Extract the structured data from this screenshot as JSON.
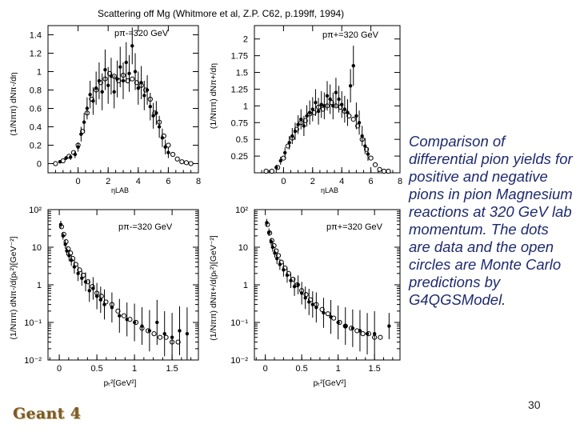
{
  "figure_title": "Scattering off Mg (Whitmore et al, Z.P. C62, p.199ff, 1994)",
  "caption": "Comparison of differential pion yields for positive and negative pions in pion Magnesium reactions at 320 GeV lab momentum. The dots are data and the open circles are Monte Carlo predictions by G4QGSModel.",
  "slide_number": "30",
  "logo_text": "Geant 4",
  "colors": {
    "ink": "#000000",
    "caption": "#1e2a6e",
    "logo": "#7a5a2a"
  },
  "chart_data": [
    {
      "id": "eta-pi-minus",
      "type": "scatter",
      "legend": "pπ-=320 GeV",
      "ylabel": "(1/Nππ) dNπ-/dη",
      "xlabel": "ηLAB",
      "xlim": [
        -2,
        8
      ],
      "ylim": [
        -0.1,
        1.5
      ],
      "yscale": "linear",
      "xticks": [
        0,
        2,
        4,
        6,
        8
      ],
      "xtick_labels": [
        "0",
        "2",
        "4",
        "6",
        "8"
      ],
      "yticks": [
        0,
        0.2,
        0.4,
        0.6,
        0.8,
        1,
        1.2,
        1.4
      ],
      "ytick_labels": [
        "0",
        "0.2",
        "0.4",
        "0.6",
        "0.8",
        "1",
        "1.2",
        "1.4"
      ],
      "data": [
        [
          -1.2,
          0.02
        ],
        [
          -0.8,
          0.06
        ],
        [
          -0.5,
          0.07
        ],
        [
          -0.2,
          0.1
        ],
        [
          0.0,
          0.18
        ],
        [
          0.2,
          0.32
        ],
        [
          0.4,
          0.45
        ],
        [
          0.6,
          0.6
        ],
        [
          0.8,
          0.75
        ],
        [
          1.0,
          0.68
        ],
        [
          1.2,
          0.82
        ],
        [
          1.4,
          0.9
        ],
        [
          1.6,
          0.78
        ],
        [
          1.8,
          1.02
        ],
        [
          2.0,
          0.85
        ],
        [
          2.2,
          0.95
        ],
        [
          2.4,
          0.78
        ],
        [
          2.6,
          0.92
        ],
        [
          2.8,
          1.05
        ],
        [
          3.0,
          0.9
        ],
        [
          3.2,
          1.1
        ],
        [
          3.4,
          0.98
        ],
        [
          3.6,
          1.28
        ],
        [
          3.8,
          1.0
        ],
        [
          4.0,
          0.82
        ],
        [
          4.2,
          0.88
        ],
        [
          4.4,
          0.74
        ],
        [
          4.6,
          0.8
        ],
        [
          4.8,
          0.62
        ],
        [
          5.0,
          0.52
        ],
        [
          5.2,
          0.55
        ],
        [
          5.4,
          0.4
        ],
        [
          5.6,
          0.28
        ],
        [
          5.8,
          0.18
        ],
        [
          6.0,
          0.12
        ]
      ],
      "data_err": [
        0.01,
        0.02,
        0.03,
        0.04,
        0.05,
        0.08,
        0.1,
        0.12,
        0.15,
        0.15,
        0.18,
        0.2,
        0.2,
        0.22,
        0.2,
        0.2,
        0.18,
        0.2,
        0.22,
        0.2,
        0.22,
        0.2,
        0.2,
        0.2,
        0.18,
        0.18,
        0.16,
        0.16,
        0.15,
        0.14,
        0.13,
        0.12,
        0.1,
        0.08,
        0.06
      ],
      "mc": [
        [
          -1.5,
          0.0
        ],
        [
          -1.0,
          0.03
        ],
        [
          -0.6,
          0.08
        ],
        [
          -0.3,
          0.12
        ],
        [
          0.0,
          0.2
        ],
        [
          0.3,
          0.35
        ],
        [
          0.6,
          0.55
        ],
        [
          0.9,
          0.7
        ],
        [
          1.2,
          0.8
        ],
        [
          1.5,
          0.88
        ],
        [
          1.8,
          0.92
        ],
        [
          2.1,
          0.98
        ],
        [
          2.4,
          0.95
        ],
        [
          2.7,
          0.9
        ],
        [
          3.0,
          0.96
        ],
        [
          3.3,
          0.9
        ],
        [
          3.6,
          0.92
        ],
        [
          3.9,
          0.88
        ],
        [
          4.2,
          0.85
        ],
        [
          4.5,
          0.8
        ],
        [
          4.8,
          0.7
        ],
        [
          5.1,
          0.55
        ],
        [
          5.4,
          0.45
        ],
        [
          5.7,
          0.3
        ],
        [
          6.0,
          0.2
        ],
        [
          6.3,
          0.1
        ],
        [
          6.6,
          0.05
        ],
        [
          6.9,
          0.02
        ],
        [
          7.2,
          0.01
        ],
        [
          7.5,
          0.0
        ]
      ]
    },
    {
      "id": "eta-pi-plus",
      "type": "scatter",
      "legend": "pπ+=320 GeV",
      "ylabel": "(1/Nππ) dNπ+/dη",
      "xlabel": "ηLAB",
      "xlim": [
        -2,
        8
      ],
      "ylim": [
        0,
        2.2
      ],
      "yscale": "linear",
      "xticks": [
        0,
        2,
        4,
        6,
        8
      ],
      "xtick_labels": [
        "0",
        "2",
        "4",
        "6",
        "8"
      ],
      "yticks": [
        0.25,
        0.5,
        0.75,
        1,
        1.25,
        1.5,
        1.75,
        2
      ],
      "ytick_labels": [
        "0.25",
        "0.5",
        "0.75",
        "1",
        "1.25",
        "1.5",
        "1.75",
        "2"
      ],
      "data": [
        [
          -0.5,
          0.08
        ],
        [
          -0.2,
          0.18
        ],
        [
          0.1,
          0.3
        ],
        [
          0.4,
          0.45
        ],
        [
          0.6,
          0.55
        ],
        [
          0.8,
          0.62
        ],
        [
          1.0,
          0.72
        ],
        [
          1.2,
          0.8
        ],
        [
          1.4,
          0.7
        ],
        [
          1.6,
          0.85
        ],
        [
          1.8,
          0.9
        ],
        [
          2.0,
          0.95
        ],
        [
          2.2,
          1.05
        ],
        [
          2.4,
          0.92
        ],
        [
          2.6,
          1.02
        ],
        [
          2.8,
          1.0
        ],
        [
          3.0,
          1.15
        ],
        [
          3.2,
          1.1
        ],
        [
          3.4,
          1.0
        ],
        [
          3.6,
          1.2
        ],
        [
          3.8,
          1.1
        ],
        [
          4.0,
          1.02
        ],
        [
          4.2,
          0.95
        ],
        [
          4.4,
          0.9
        ],
        [
          4.6,
          1.3
        ],
        [
          4.8,
          1.6
        ],
        [
          5.0,
          0.85
        ],
        [
          5.2,
          0.75
        ],
        [
          5.4,
          0.55
        ],
        [
          5.6,
          0.4
        ],
        [
          5.8,
          0.28
        ]
      ],
      "data_err": [
        0.04,
        0.06,
        0.08,
        0.1,
        0.12,
        0.13,
        0.14,
        0.15,
        0.15,
        0.16,
        0.18,
        0.18,
        0.2,
        0.2,
        0.2,
        0.2,
        0.22,
        0.22,
        0.2,
        0.22,
        0.2,
        0.2,
        0.2,
        0.2,
        0.25,
        0.3,
        0.2,
        0.18,
        0.15,
        0.12,
        0.1
      ],
      "mc": [
        [
          -1.2,
          0.0
        ],
        [
          -0.8,
          0.02
        ],
        [
          -0.4,
          0.08
        ],
        [
          0.0,
          0.22
        ],
        [
          0.3,
          0.4
        ],
        [
          0.6,
          0.52
        ],
        [
          0.9,
          0.65
        ],
        [
          1.2,
          0.75
        ],
        [
          1.5,
          0.78
        ],
        [
          1.8,
          0.88
        ],
        [
          2.1,
          0.9
        ],
        [
          2.4,
          0.98
        ],
        [
          2.7,
          0.95
        ],
        [
          3.0,
          1.0
        ],
        [
          3.3,
          1.05
        ],
        [
          3.6,
          1.0
        ],
        [
          3.9,
          0.98
        ],
        [
          4.2,
          0.92
        ],
        [
          4.5,
          0.85
        ],
        [
          4.8,
          0.8
        ],
        [
          5.1,
          0.7
        ],
        [
          5.4,
          0.5
        ],
        [
          5.7,
          0.35
        ],
        [
          6.0,
          0.22
        ],
        [
          6.3,
          0.12
        ],
        [
          6.6,
          0.05
        ],
        [
          6.9,
          0.02
        ],
        [
          7.2,
          0.01
        ]
      ]
    },
    {
      "id": "pt-pi-minus",
      "type": "scatter",
      "legend": "pπ-=320 GeV",
      "ylabel": "(1/Nππ) dNπ-/d(pₜ²)[GeV⁻²]",
      "xlabel": "pₜ²[GeV²]",
      "xlim": [
        -0.15,
        1.85
      ],
      "ylim": [
        0.01,
        100
      ],
      "yscale": "log",
      "xticks": [
        0,
        0.5,
        1,
        1.5
      ],
      "xtick_labels": [
        "0",
        "0.5",
        "1",
        "1.5"
      ],
      "yticks": [
        0.01,
        0.1,
        1,
        10,
        100
      ],
      "ytick_labels": [
        "10⁻²",
        "10⁻¹",
        "1",
        "10",
        "10²"
      ],
      "data": [
        [
          0.02,
          40
        ],
        [
          0.05,
          20
        ],
        [
          0.08,
          12
        ],
        [
          0.1,
          8
        ],
        [
          0.13,
          6
        ],
        [
          0.16,
          4.5
        ],
        [
          0.2,
          3
        ],
        [
          0.25,
          2
        ],
        [
          0.3,
          1.5
        ],
        [
          0.35,
          1.2
        ],
        [
          0.4,
          0.7
        ],
        [
          0.45,
          0.8
        ],
        [
          0.5,
          0.5
        ],
        [
          0.55,
          0.4
        ],
        [
          0.6,
          0.3
        ],
        [
          0.7,
          0.25
        ],
        [
          0.8,
          0.15
        ],
        [
          0.9,
          0.12
        ],
        [
          1.0,
          0.1
        ],
        [
          1.1,
          0.08
        ],
        [
          1.2,
          0.06
        ],
        [
          1.3,
          0.1
        ],
        [
          1.4,
          0.05
        ],
        [
          1.5,
          0.04
        ],
        [
          1.6,
          0.06
        ],
        [
          1.7,
          0.05
        ]
      ],
      "data_err": [
        0.1,
        0.1,
        0.12,
        0.12,
        0.15,
        0.15,
        0.18,
        0.2,
        0.2,
        0.25,
        0.3,
        0.3,
        0.35,
        0.35,
        0.4,
        0.4,
        0.45,
        0.45,
        0.5,
        0.5,
        0.55,
        0.6,
        0.6,
        0.65,
        0.65,
        0.7
      ],
      "mc": [
        [
          0.03,
          35
        ],
        [
          0.06,
          22
        ],
        [
          0.09,
          14
        ],
        [
          0.12,
          9
        ],
        [
          0.15,
          7
        ],
        [
          0.18,
          5
        ],
        [
          0.22,
          3.5
        ],
        [
          0.27,
          2.5
        ],
        [
          0.32,
          1.8
        ],
        [
          0.38,
          1.2
        ],
        [
          0.44,
          0.9
        ],
        [
          0.5,
          0.6
        ],
        [
          0.56,
          0.5
        ],
        [
          0.62,
          0.35
        ],
        [
          0.7,
          0.3
        ],
        [
          0.78,
          0.2
        ],
        [
          0.86,
          0.15
        ],
        [
          0.94,
          0.12
        ],
        [
          1.02,
          0.1
        ],
        [
          1.1,
          0.07
        ],
        [
          1.18,
          0.06
        ],
        [
          1.26,
          0.05
        ],
        [
          1.34,
          0.04
        ],
        [
          1.42,
          0.04
        ],
        [
          1.5,
          0.03
        ],
        [
          1.58,
          0.03
        ]
      ]
    },
    {
      "id": "pt-pi-plus",
      "type": "scatter",
      "legend": "pπ+=320 GeV",
      "ylabel": "(1/Nππ) dNπ+/d(pₜ²)[GeV⁻²]",
      "xlabel": "pₜ²[GeV²]",
      "xlim": [
        -0.15,
        1.85
      ],
      "ylim": [
        0.01,
        100
      ],
      "yscale": "log",
      "xticks": [
        0,
        0.5,
        1,
        1.5
      ],
      "xtick_labels": [
        "0",
        "0.5",
        "1",
        "1.5"
      ],
      "yticks": [
        0.01,
        0.1,
        1,
        10,
        100
      ],
      "ytick_labels": [
        "10⁻²",
        "10⁻¹",
        "1",
        "10",
        "10²"
      ],
      "data": [
        [
          0.02,
          45
        ],
        [
          0.05,
          25
        ],
        [
          0.08,
          14
        ],
        [
          0.1,
          10
        ],
        [
          0.13,
          7
        ],
        [
          0.16,
          5
        ],
        [
          0.2,
          3.5
        ],
        [
          0.25,
          2.5
        ],
        [
          0.3,
          1.8
        ],
        [
          0.35,
          1.3
        ],
        [
          0.4,
          0.9
        ],
        [
          0.45,
          1.0
        ],
        [
          0.5,
          0.6
        ],
        [
          0.55,
          0.45
        ],
        [
          0.6,
          0.35
        ],
        [
          0.65,
          0.3
        ],
        [
          0.7,
          0.25
        ],
        [
          0.8,
          0.18
        ],
        [
          0.9,
          0.14
        ],
        [
          1.0,
          0.1
        ],
        [
          1.1,
          0.08
        ],
        [
          1.2,
          0.07
        ],
        [
          1.3,
          0.06
        ],
        [
          1.4,
          0.05
        ],
        [
          1.5,
          0.05
        ],
        [
          1.7,
          0.08
        ]
      ],
      "data_err": [
        0.1,
        0.1,
        0.1,
        0.12,
        0.12,
        0.15,
        0.15,
        0.18,
        0.2,
        0.2,
        0.25,
        0.25,
        0.3,
        0.3,
        0.35,
        0.35,
        0.4,
        0.4,
        0.45,
        0.45,
        0.5,
        0.5,
        0.55,
        0.55,
        0.6,
        0.35
      ],
      "mc": [
        [
          0.03,
          40
        ],
        [
          0.06,
          24
        ],
        [
          0.09,
          15
        ],
        [
          0.12,
          11
        ],
        [
          0.15,
          8
        ],
        [
          0.18,
          6
        ],
        [
          0.22,
          4
        ],
        [
          0.27,
          2.8
        ],
        [
          0.32,
          2
        ],
        [
          0.38,
          1.4
        ],
        [
          0.44,
          1.0
        ],
        [
          0.5,
          0.7
        ],
        [
          0.56,
          0.55
        ],
        [
          0.62,
          0.4
        ],
        [
          0.7,
          0.3
        ],
        [
          0.78,
          0.22
        ],
        [
          0.86,
          0.17
        ],
        [
          0.94,
          0.13
        ],
        [
          1.02,
          0.1
        ],
        [
          1.1,
          0.08
        ],
        [
          1.18,
          0.07
        ],
        [
          1.26,
          0.06
        ],
        [
          1.34,
          0.05
        ],
        [
          1.42,
          0.05
        ],
        [
          1.5,
          0.04
        ],
        [
          1.58,
          0.04
        ]
      ]
    }
  ]
}
